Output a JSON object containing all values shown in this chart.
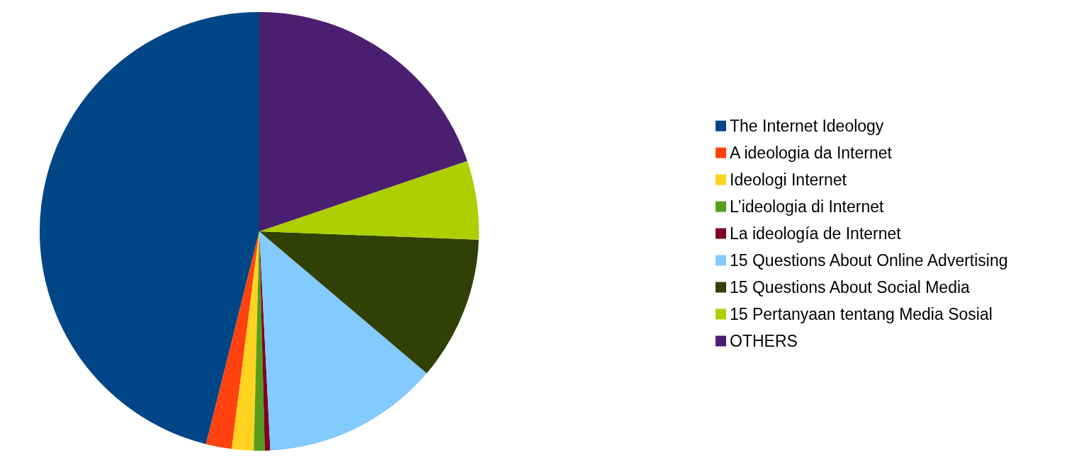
{
  "chart_data": {
    "type": "pie",
    "categories": [
      "The Internet Ideology",
      "A ideologia da Internet",
      "Ideologi Internet",
      "L’ideologia di Internet",
      "La ideología de Internet",
      "15 Questions About Online Advertising",
      "15 Questions About Social Media",
      "15 Pertanyaan tentang Media Sosial",
      "OTHERS"
    ],
    "values": [
      46.1,
      1.9,
      1.6,
      0.8,
      0.4,
      13.0,
      10.6,
      5.8,
      19.8
    ],
    "colors": [
      "#004586",
      "#ff420e",
      "#ffd320",
      "#579d1c",
      "#7e0021",
      "#83caff",
      "#314004",
      "#aecf00",
      "#4b1f6f"
    ],
    "legend": "right"
  }
}
